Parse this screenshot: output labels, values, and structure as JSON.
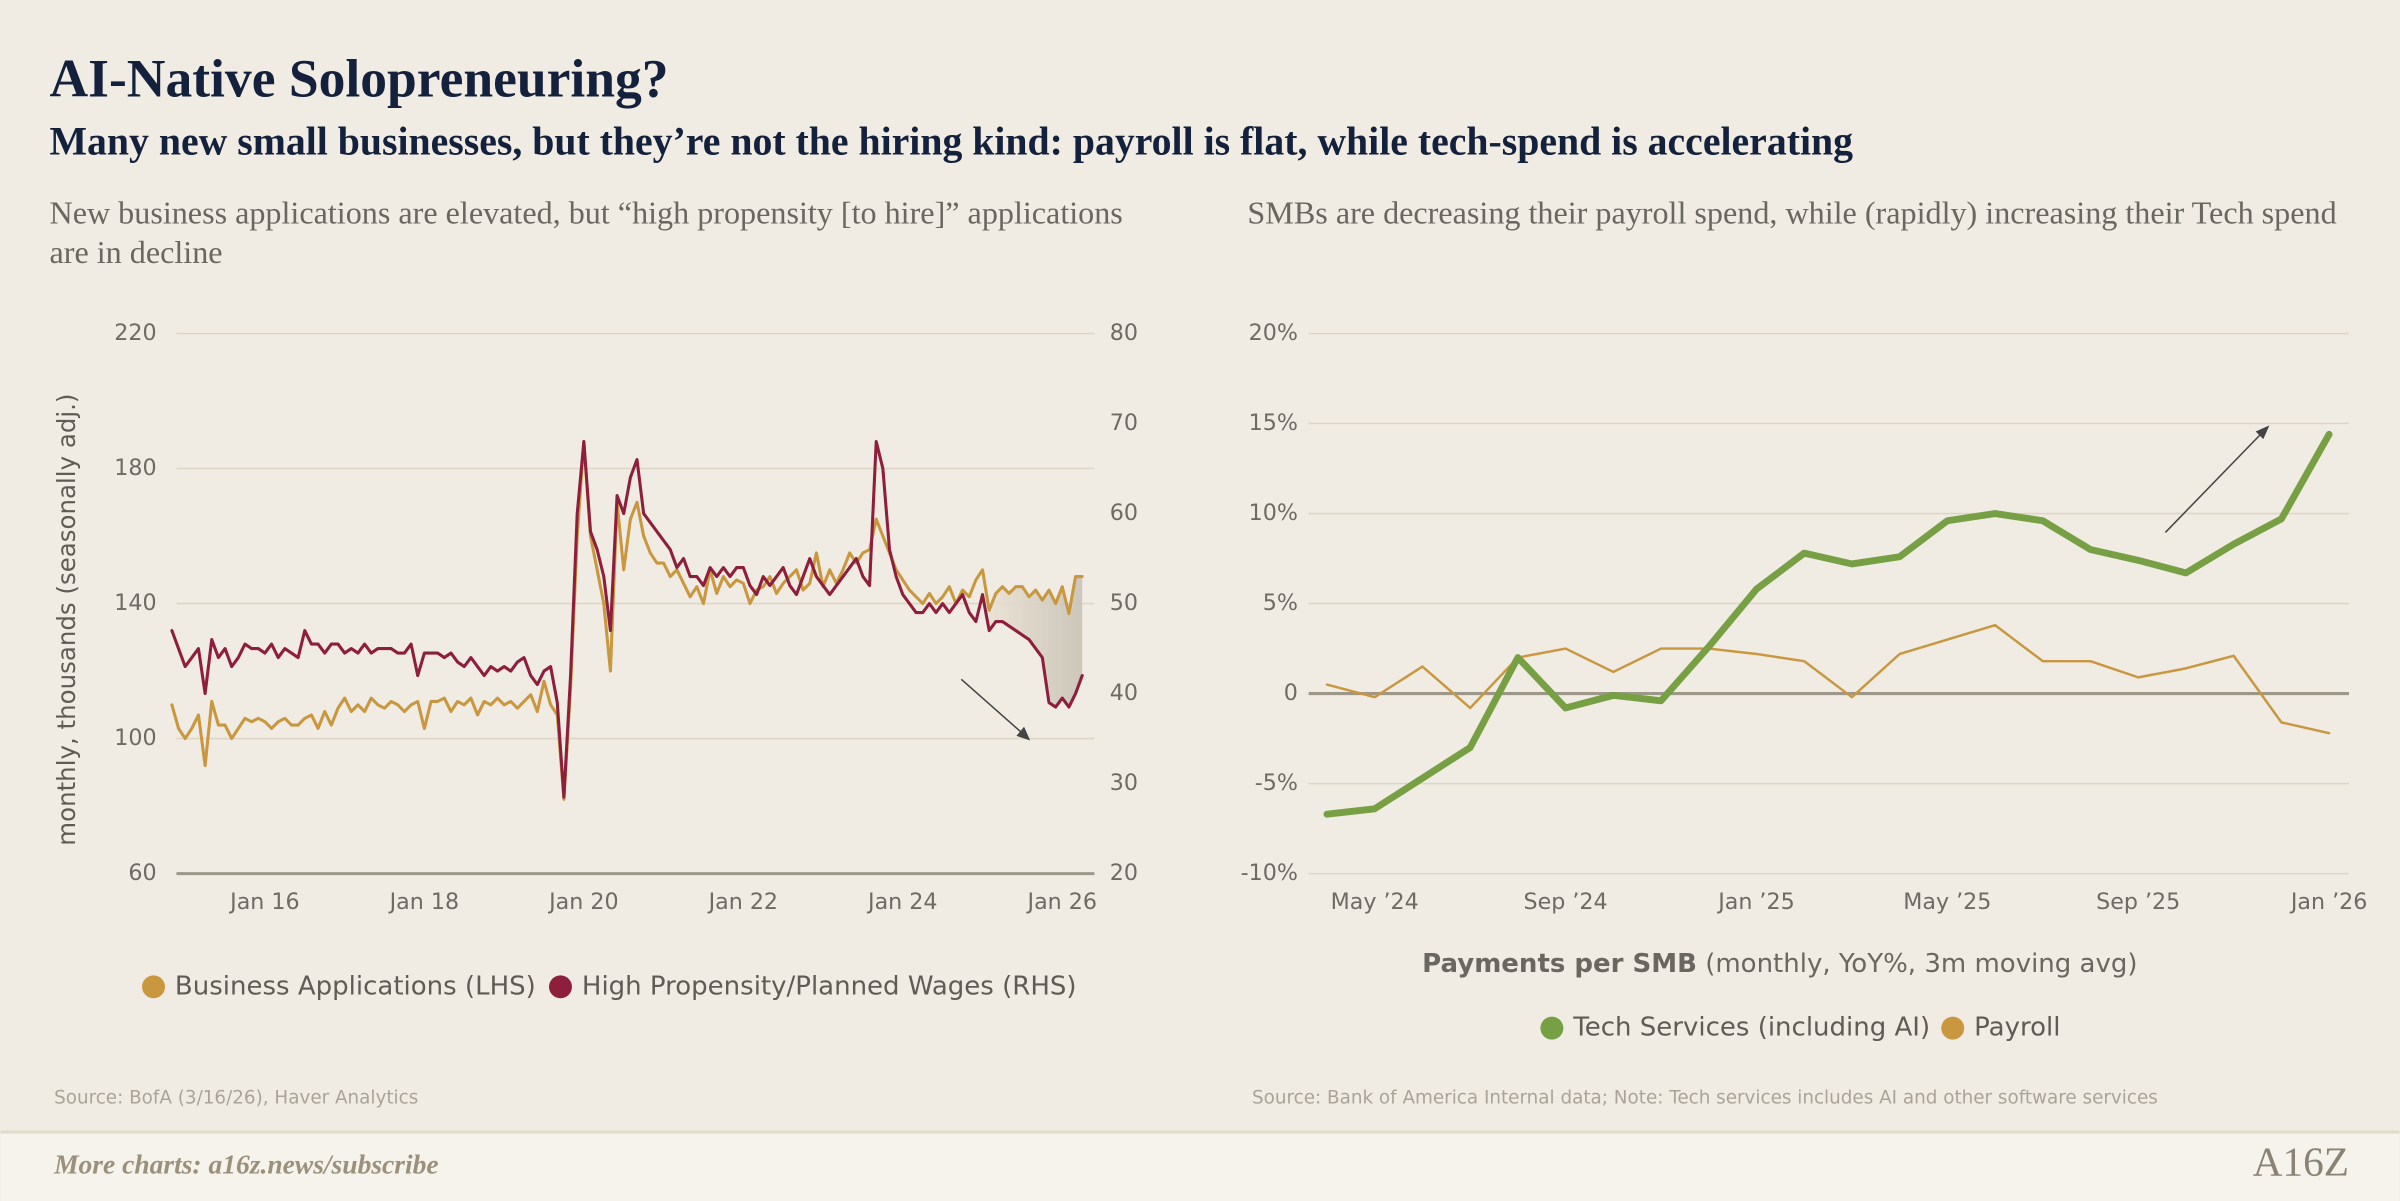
{
  "header": {
    "title": "AI-Native Solopreneuring?",
    "subtitle": "Many new small businesses, but they’re not the hiring kind: payroll is flat, while tech-spend is accelerating"
  },
  "chart_data": [
    {
      "type": "line",
      "subtitle": "New business applications are elevated, but “high propensity [to hire]” applications are in decline",
      "ylabel": "monthly, thousands (seasonally adj.)",
      "x": [
        "2014-11",
        "2014-12",
        "2015-01",
        "2015-02",
        "2015-03",
        "2015-04",
        "2015-05",
        "2015-06",
        "2015-07",
        "2015-08",
        "2015-09",
        "2015-10",
        "2015-11",
        "2015-12",
        "2016-01",
        "2016-02",
        "2016-03",
        "2016-04",
        "2016-05",
        "2016-06",
        "2016-07",
        "2016-08",
        "2016-09",
        "2016-10",
        "2016-11",
        "2016-12",
        "2017-01",
        "2017-02",
        "2017-03",
        "2017-04",
        "2017-05",
        "2017-06",
        "2017-07",
        "2017-08",
        "2017-09",
        "2017-10",
        "2017-11",
        "2017-12",
        "2018-01",
        "2018-02",
        "2018-03",
        "2018-04",
        "2018-05",
        "2018-06",
        "2018-07",
        "2018-08",
        "2018-09",
        "2018-10",
        "2018-11",
        "2018-12",
        "2019-01",
        "2019-02",
        "2019-03",
        "2019-04",
        "2019-05",
        "2019-06",
        "2019-07",
        "2019-08",
        "2019-09",
        "2019-10",
        "2019-11",
        "2019-12",
        "2020-01",
        "2020-02",
        "2020-03",
        "2020-04",
        "2020-05",
        "2020-06",
        "2020-07",
        "2020-08",
        "2020-09",
        "2020-10",
        "2020-11",
        "2020-12",
        "2021-01",
        "2021-02",
        "2021-03",
        "2021-04",
        "2021-05",
        "2021-06",
        "2021-07",
        "2021-08",
        "2021-09",
        "2021-10",
        "2021-11",
        "2021-12",
        "2022-01",
        "2022-02",
        "2022-03",
        "2022-04",
        "2022-05",
        "2022-06",
        "2022-07",
        "2022-08",
        "2022-09",
        "2022-10",
        "2022-11",
        "2022-12",
        "2023-01",
        "2023-02",
        "2023-03",
        "2023-04",
        "2023-05",
        "2023-06",
        "2023-07",
        "2023-08",
        "2023-09",
        "2023-10",
        "2023-11",
        "2023-12",
        "2024-01",
        "2024-02",
        "2024-03",
        "2024-04",
        "2024-05",
        "2024-06",
        "2024-07",
        "2024-08",
        "2024-09",
        "2024-10",
        "2024-11",
        "2024-12",
        "2025-01",
        "2025-02",
        "2025-03",
        "2025-04",
        "2025-05",
        "2025-06",
        "2025-07",
        "2025-08",
        "2025-09",
        "2025-10",
        "2025-11",
        "2025-12",
        "2026-01",
        "2026-02",
        "2026-03",
        "2026-04"
      ],
      "xticks": [
        {
          "value": "2016-01",
          "label": "Jan 16"
        },
        {
          "value": "2018-01",
          "label": "Jan 18"
        },
        {
          "value": "2020-01",
          "label": "Jan 20"
        },
        {
          "value": "2022-01",
          "label": "Jan 22"
        },
        {
          "value": "2024-01",
          "label": "Jan 24"
        },
        {
          "value": "2026-01",
          "label": "Jan 26"
        }
      ],
      "ylim": [
        60,
        220
      ],
      "yticks": [
        60,
        100,
        140,
        180,
        220
      ],
      "y2lim": [
        20,
        80
      ],
      "y2ticks": [
        20,
        30,
        40,
        50,
        60,
        70,
        80
      ],
      "grid": true,
      "series": [
        {
          "name": "Business Applications (LHS)",
          "color": "#c9973f",
          "values": [
            110,
            103,
            100,
            103,
            107,
            92,
            111,
            104,
            104,
            100,
            103,
            106,
            105,
            106,
            105,
            103,
            105,
            106,
            104,
            104,
            106,
            107,
            103,
            108,
            104,
            109,
            112,
            108,
            110,
            108,
            112,
            110,
            109,
            111,
            110,
            108,
            110,
            111,
            103,
            111,
            111,
            112,
            108,
            111,
            110,
            112,
            107,
            111,
            110,
            112,
            110,
            111,
            109,
            111,
            113,
            108,
            117,
            110,
            107,
            82,
            115,
            160,
            188,
            160,
            150,
            140,
            120,
            170,
            150,
            165,
            170,
            160,
            155,
            152,
            152,
            148,
            150,
            146,
            142,
            145,
            140,
            150,
            143,
            148,
            145,
            147,
            146,
            140,
            144,
            145,
            148,
            143,
            146,
            148,
            150,
            144,
            146,
            155,
            145,
            150,
            146,
            150,
            155,
            152,
            155,
            156,
            165,
            160,
            155,
            150,
            147,
            144,
            142,
            140,
            143,
            140,
            142,
            145,
            140,
            144,
            142,
            147,
            150,
            138,
            143,
            145,
            143,
            145,
            145,
            142,
            144,
            141,
            144,
            140,
            145,
            137,
            148,
            148
          ]
        },
        {
          "name": "High Propensity/Planned Wages (RHS)",
          "color": "#8e1f3c",
          "axis": "y2",
          "values": [
            47,
            45,
            43,
            44,
            45,
            40,
            46,
            44,
            45,
            43,
            44,
            45.5,
            45,
            45,
            44.5,
            45.5,
            44,
            45,
            44.5,
            44,
            47,
            45.5,
            45.5,
            44.5,
            45.5,
            45.5,
            44.5,
            45,
            44.5,
            45.5,
            44.5,
            45,
            45,
            45,
            44.5,
            44.5,
            45.5,
            42,
            44.5,
            44.5,
            44.5,
            44,
            44.5,
            43.5,
            43,
            44,
            43,
            42,
            43,
            42.5,
            43,
            42.5,
            43.5,
            44,
            42,
            41,
            42.5,
            43,
            39,
            28.5,
            42,
            60,
            68,
            58,
            56,
            53,
            47,
            62,
            60,
            64,
            66,
            60,
            59,
            58,
            57,
            56,
            54,
            55,
            53,
            53,
            52,
            54,
            53,
            54,
            53,
            54,
            54,
            52,
            51,
            53,
            52,
            53,
            54,
            52,
            51,
            53,
            55,
            53,
            52,
            51,
            52,
            53,
            54,
            55,
            53,
            52,
            68,
            65,
            56,
            53,
            51,
            50,
            49,
            49,
            50,
            49,
            50,
            49,
            50,
            51,
            49,
            48,
            51,
            47,
            48,
            48,
            47.5,
            47,
            46.5,
            46,
            45,
            44,
            39,
            38.5,
            39.5,
            38.5,
            40,
            42
          ]
        }
      ],
      "source": "Source: BofA (3/16/26), Haver Analytics"
    },
    {
      "type": "line",
      "subtitle": "SMBs are decreasing their payroll spend, while (rapidly) increasing their Tech spend",
      "x": [
        "2024-04",
        "2024-05",
        "2024-06",
        "2024-07",
        "2024-08",
        "2024-09",
        "2024-10",
        "2024-11",
        "2024-12",
        "2025-01",
        "2025-02",
        "2025-03",
        "2025-04",
        "2025-05",
        "2025-06",
        "2025-07",
        "2025-08",
        "2025-09",
        "2025-10",
        "2025-11",
        "2025-12",
        "2026-01"
      ],
      "xticks": [
        {
          "value": "2024-05",
          "label": "May ’24"
        },
        {
          "value": "2024-09",
          "label": "Sep ’24"
        },
        {
          "value": "2025-01",
          "label": "Jan ’25"
        },
        {
          "value": "2025-05",
          "label": "May ’25"
        },
        {
          "value": "2025-09",
          "label": "Sep ’25"
        },
        {
          "value": "2026-01",
          "label": "Jan ’26"
        }
      ],
      "ylim": [
        -10,
        20
      ],
      "yticks": [
        {
          "value": -10,
          "label": "-10%"
        },
        {
          "value": -5,
          "label": "-5%"
        },
        0,
        {
          "value": 5,
          "label": "5%"
        },
        {
          "value": 10,
          "label": "10%"
        },
        {
          "value": 15,
          "label": "15%"
        },
        {
          "value": 20,
          "label": "20%"
        }
      ],
      "grid": true,
      "xlabel": "Payments per SMB",
      "xlabel_note": "(monthly, YoY%, 3m moving avg)",
      "series": [
        {
          "name": "Tech Services (including AI)",
          "color": "#76a043",
          "values": [
            -6.7,
            -6.4,
            -4.7,
            -3.0,
            2.0,
            -0.8,
            -0.1,
            -0.4,
            2.6,
            5.8,
            7.8,
            7.2,
            7.6,
            9.6,
            10.0,
            9.6,
            8.0,
            7.4,
            6.7,
            8.3,
            9.7,
            14.4
          ]
        },
        {
          "name": "Payroll",
          "color": "#c9973f",
          "values": [
            0.5,
            -0.2,
            1.5,
            -0.8,
            2.0,
            2.5,
            1.2,
            2.5,
            2.5,
            2.2,
            1.8,
            -0.2,
            2.2,
            3.0,
            3.8,
            1.8,
            1.8,
            0.9,
            1.4,
            2.1,
            -1.6,
            -2.2
          ]
        }
      ],
      "source": "Source: Bank of America Internal data; Note: Tech services includes AI and other software services"
    }
  ],
  "footer": {
    "link": "More charts: a16z.news/subscribe",
    "logo": "A16Z"
  }
}
